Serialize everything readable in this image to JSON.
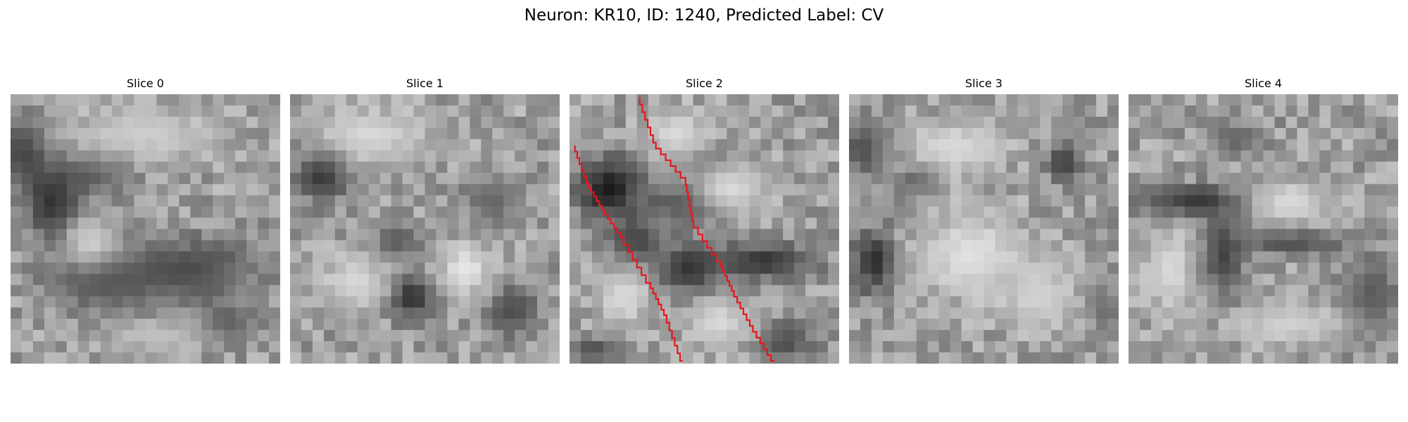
{
  "figure": {
    "title": "Neuron: KR10, ID: 1240, Predicted Label: CV"
  },
  "slices": [
    {
      "label": "Slice 0",
      "dark_blobs": [
        [
          0.05,
          0.22,
          0.1,
          0.13,
          0.25
        ],
        [
          0.3,
          0.3,
          0.15,
          0.08,
          0.35
        ],
        [
          0.15,
          0.4,
          0.1,
          0.15,
          0.2
        ],
        [
          0.35,
          0.7,
          0.22,
          0.1,
          0.35
        ],
        [
          0.65,
          0.65,
          0.28,
          0.12,
          0.3
        ],
        [
          0.8,
          0.85,
          0.12,
          0.08,
          0.35
        ]
      ],
      "light_blobs": [
        [
          0.5,
          0.15,
          0.28,
          0.1,
          0.8
        ],
        [
          0.3,
          0.55,
          0.1,
          0.08,
          0.8
        ],
        [
          0.55,
          0.9,
          0.2,
          0.06,
          0.75
        ]
      ],
      "traces": []
    },
    {
      "label": "Slice 1",
      "dark_blobs": [
        [
          0.12,
          0.3,
          0.1,
          0.1,
          0.2
        ],
        [
          0.4,
          0.55,
          0.08,
          0.07,
          0.35
        ],
        [
          0.45,
          0.75,
          0.09,
          0.08,
          0.15
        ],
        [
          0.75,
          0.4,
          0.1,
          0.08,
          0.4
        ],
        [
          0.82,
          0.8,
          0.1,
          0.1,
          0.3
        ]
      ],
      "light_blobs": [
        [
          0.3,
          0.15,
          0.2,
          0.1,
          0.85
        ],
        [
          0.65,
          0.65,
          0.1,
          0.1,
          0.9
        ],
        [
          0.25,
          0.7,
          0.12,
          0.1,
          0.85
        ]
      ],
      "traces": []
    },
    {
      "label": "Slice 2",
      "dark_blobs": [
        [
          0.15,
          0.35,
          0.12,
          0.12,
          0.1
        ],
        [
          0.25,
          0.55,
          0.1,
          0.1,
          0.25
        ],
        [
          0.45,
          0.4,
          0.15,
          0.08,
          0.25
        ],
        [
          0.5,
          0.25,
          0.12,
          0.06,
          0.35
        ],
        [
          0.45,
          0.65,
          0.12,
          0.1,
          0.2
        ],
        [
          0.72,
          0.62,
          0.18,
          0.07,
          0.2
        ],
        [
          0.8,
          0.92,
          0.1,
          0.08,
          0.3
        ],
        [
          0.1,
          0.95,
          0.1,
          0.05,
          0.3
        ]
      ],
      "light_blobs": [
        [
          0.4,
          0.15,
          0.12,
          0.1,
          0.85
        ],
        [
          0.6,
          0.35,
          0.15,
          0.1,
          0.85
        ],
        [
          0.2,
          0.75,
          0.1,
          0.12,
          0.85
        ],
        [
          0.55,
          0.85,
          0.12,
          0.1,
          0.85
        ]
      ],
      "traces": [
        [
          [
            0.02,
            0.19
          ],
          [
            0.07,
            0.33
          ],
          [
            0.13,
            0.43
          ],
          [
            0.2,
            0.53
          ],
          [
            0.3,
            0.7
          ],
          [
            0.36,
            0.82
          ],
          [
            0.42,
            0.99
          ]
        ],
        [
          [
            0.26,
            0.01
          ],
          [
            0.32,
            0.18
          ],
          [
            0.43,
            0.31
          ],
          [
            0.46,
            0.47
          ],
          [
            0.56,
            0.62
          ],
          [
            0.61,
            0.73
          ],
          [
            0.68,
            0.86
          ],
          [
            0.76,
            0.99
          ]
        ]
      ],
      "trace_color": "#e8161d"
    },
    {
      "label": "Slice 3",
      "dark_blobs": [
        [
          0.05,
          0.2,
          0.08,
          0.1,
          0.3
        ],
        [
          0.1,
          0.62,
          0.08,
          0.12,
          0.15
        ],
        [
          0.25,
          0.32,
          0.08,
          0.06,
          0.35
        ],
        [
          0.8,
          0.25,
          0.07,
          0.08,
          0.25
        ],
        [
          0.95,
          0.8,
          0.06,
          0.1,
          0.4
        ]
      ],
      "light_blobs": [
        [
          0.4,
          0.2,
          0.18,
          0.1,
          0.85
        ],
        [
          0.45,
          0.6,
          0.2,
          0.15,
          0.88
        ],
        [
          0.7,
          0.75,
          0.15,
          0.12,
          0.82
        ]
      ],
      "traces": []
    },
    {
      "label": "Slice 4",
      "dark_blobs": [
        [
          0.25,
          0.4,
          0.2,
          0.06,
          0.2
        ],
        [
          0.35,
          0.6,
          0.08,
          0.15,
          0.25
        ],
        [
          0.6,
          0.55,
          0.2,
          0.05,
          0.3
        ],
        [
          0.4,
          0.17,
          0.1,
          0.06,
          0.4
        ],
        [
          0.9,
          0.75,
          0.1,
          0.15,
          0.35
        ]
      ],
      "light_blobs": [
        [
          0.15,
          0.65,
          0.1,
          0.15,
          0.85
        ],
        [
          0.6,
          0.4,
          0.15,
          0.08,
          0.85
        ],
        [
          0.6,
          0.85,
          0.2,
          0.08,
          0.82
        ]
      ],
      "traces": []
    }
  ]
}
